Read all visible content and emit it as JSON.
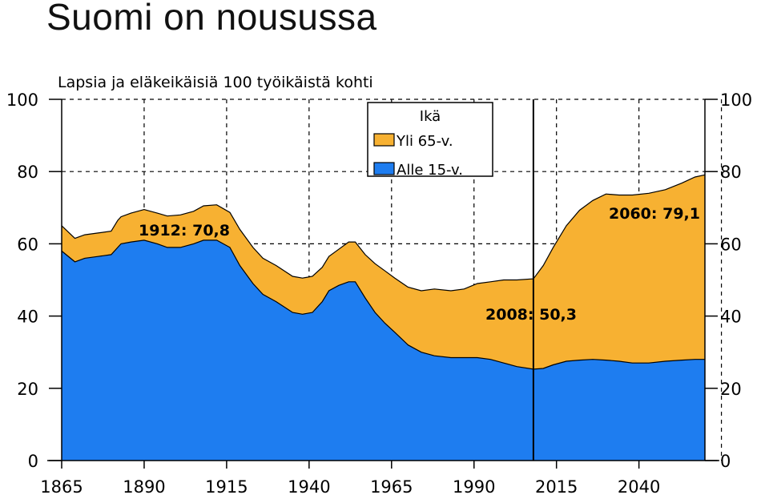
{
  "slide_title": "Suomi on nousussa",
  "chart_data": {
    "type": "area",
    "title": "Lapsia ja eläkeikäisiä 100 työikäistä kohti",
    "xlim": [
      1865,
      2060
    ],
    "ylim": [
      0,
      100
    ],
    "x_ticks": [
      "1865",
      "1890",
      "1915",
      "1940",
      "1965",
      "1990",
      "2015",
      "2040"
    ],
    "y_ticks": [
      "0",
      "20",
      "40",
      "60",
      "80",
      "100"
    ],
    "y_ticks_right": [
      "0",
      "20",
      "40",
      "60",
      "80",
      "100"
    ],
    "grid": "dashed",
    "legend": {
      "title": "Ikä",
      "placement": "top-right",
      "entries": [
        {
          "label": "Yli 65-v.",
          "color": "#F7B132"
        },
        {
          "label": "Alle 15-v.",
          "color": "#1E7DF0"
        }
      ]
    },
    "x": [
      1865,
      1869,
      1872,
      1876,
      1880,
      1882,
      1883,
      1886,
      1890,
      1894,
      1897,
      1901,
      1905,
      1908,
      1912,
      1916,
      1919,
      1923,
      1926,
      1930,
      1935,
      1938,
      1941,
      1944,
      1946,
      1949,
      1952,
      1954,
      1957,
      1960,
      1963,
      1966,
      1970,
      1974,
      1978,
      1983,
      1987,
      1991,
      1995,
      1999,
      2003,
      2008,
      2011,
      2014,
      2018,
      2022,
      2026,
      2030,
      2034,
      2038,
      2043,
      2048,
      2053,
      2057,
      2060
    ],
    "series": [
      {
        "name": "Alle 15-v.",
        "color": "#1E7DF0",
        "values": [
          58,
          55,
          56,
          56.5,
          57,
          59,
          60,
          60.5,
          61,
          60,
          59,
          59,
          60,
          61,
          61,
          59,
          54,
          49,
          46,
          44,
          41,
          40.5,
          41,
          44,
          47,
          48.5,
          49.5,
          49.5,
          45,
          41,
          38,
          35.5,
          32,
          30,
          29,
          28.5,
          28.5,
          28.5,
          28,
          27,
          26,
          25.3,
          25.5,
          26.5,
          27.5,
          27.8,
          28,
          27.8,
          27.5,
          27,
          27,
          27.5,
          27.8,
          28,
          28
        ]
      },
      {
        "name": "Yli 65-v.",
        "color": "#F7B132",
        "values": [
          7,
          6.5,
          6.5,
          6.5,
          6.5,
          7.5,
          7.5,
          8,
          8.5,
          8.5,
          8.7,
          9,
          9,
          9.5,
          9.8,
          9.7,
          10,
          10,
          10,
          10,
          10,
          10,
          10,
          9.5,
          9.5,
          10,
          11,
          11,
          12,
          13.5,
          14.5,
          15,
          16,
          17,
          18.5,
          18.5,
          19,
          20.5,
          21.5,
          23,
          24,
          25,
          28.5,
          32.5,
          37.5,
          41.5,
          44,
          46,
          46,
          46.5,
          47,
          47.5,
          49,
          50.5,
          51.1
        ]
      }
    ],
    "vline_x": 2008,
    "annotations": [
      {
        "text": "1912: 70,8",
        "x": 1912,
        "y": 70.8
      },
      {
        "text": "2008: 50,3",
        "x": 2008,
        "y": 50.3
      },
      {
        "text": "2060: 79,1",
        "x": 2060,
        "y": 79.1
      }
    ]
  }
}
